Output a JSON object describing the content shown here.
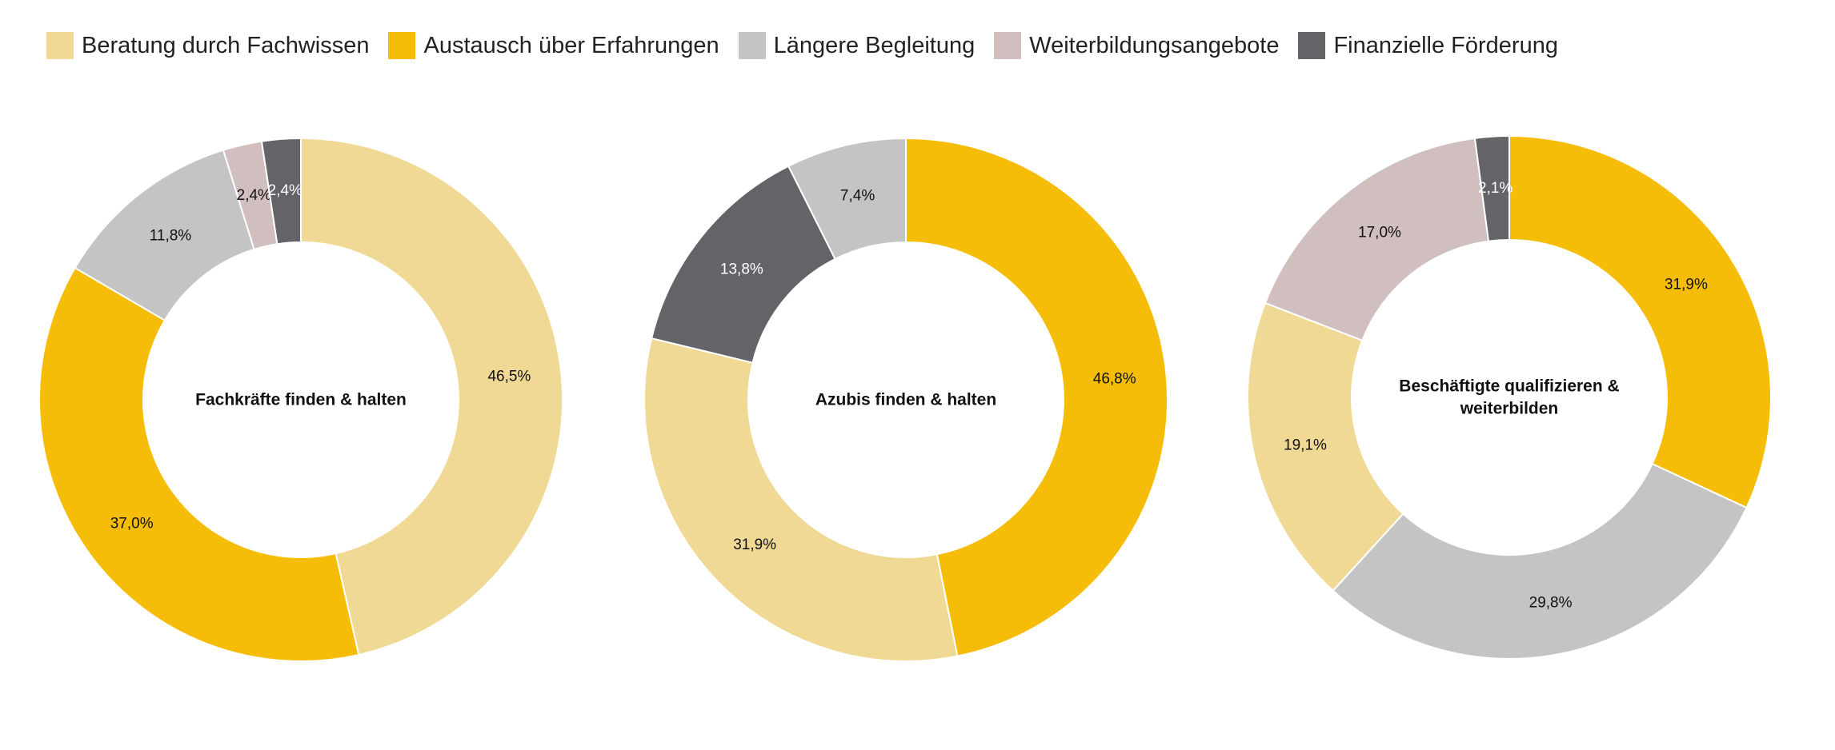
{
  "legend": [
    {
      "label": "Beratung durch Fachwissen",
      "color": "#f0d994"
    },
    {
      "label": "Austausch über Erfahrungen",
      "color": "#f5bd08"
    },
    {
      "label": "Längere Begleitung",
      "color": "#c4c4c4"
    },
    {
      "label": "Weiterbildungsangebote",
      "color": "#d0bfbe"
    },
    {
      "label": "Finanzielle Förderung",
      "color": "#646368"
    }
  ],
  "chart_data": [
    {
      "type": "pie",
      "donut": true,
      "title_lines": [
        "Fachkräfte finden & halten"
      ],
      "slices": [
        {
          "category": "Beratung durch Fachwissen",
          "value": 46.5,
          "label": "46,5%"
        },
        {
          "category": "Austausch über Erfahrungen",
          "value": 37.0,
          "label": "37,0%"
        },
        {
          "category": "Längere Begleitung",
          "value": 11.8,
          "label": "11,8%"
        },
        {
          "category": "Weiterbildungsangebote",
          "value": 2.4,
          "label": "2,4%"
        },
        {
          "category": "Finanzielle Förderung",
          "value": 2.4,
          "label": "2,4%"
        }
      ]
    },
    {
      "type": "pie",
      "donut": true,
      "title_lines": [
        "Azubis finden & halten"
      ],
      "slices": [
        {
          "category": "Austausch über Erfahrungen",
          "value": 46.8,
          "label": "46,8%"
        },
        {
          "category": "Beratung durch Fachwissen",
          "value": 31.9,
          "label": "31,9%"
        },
        {
          "category": "Finanzielle Förderung",
          "value": 13.8,
          "label": "13,8%"
        },
        {
          "category": "Längere Begleitung",
          "value": 7.4,
          "label": "7,4%"
        }
      ]
    },
    {
      "type": "pie",
      "donut": true,
      "title_lines": [
        "Beschäftigte qualifizieren &",
        "weiterbilden"
      ],
      "slices": [
        {
          "category": "Austausch über Erfahrungen",
          "value": 31.9,
          "label": "31,9%"
        },
        {
          "category": "Längere Begleitung",
          "value": 29.8,
          "label": "29,8%"
        },
        {
          "category": "Beratung durch Fachwissen",
          "value": 19.1,
          "label": "19,1%"
        },
        {
          "category": "Weiterbildungsangebote",
          "value": 17.0,
          "label": "17,0%"
        },
        {
          "category": "Finanzielle Förderung",
          "value": 2.1,
          "label": "2,1%"
        }
      ]
    }
  ]
}
